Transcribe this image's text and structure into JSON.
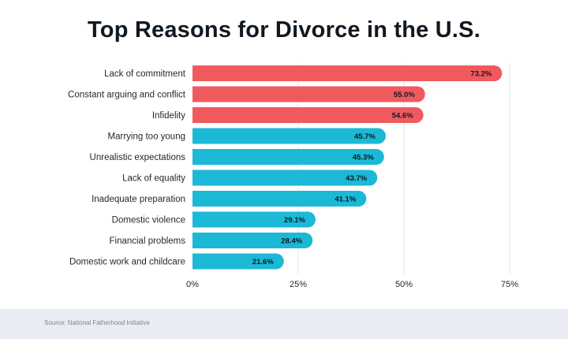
{
  "chart_data": {
    "type": "bar",
    "orientation": "horizontal",
    "title": "Top Reasons for Divorce in the U.S.",
    "categories": [
      "Lack of commitment",
      "Constant arguing and conflict",
      "Infidelity",
      "Marrying too young",
      "Unrealistic expectations",
      "Lack of equality",
      "Inadequate preparation",
      "Domestic violence",
      "Financial problems",
      "Domestic work and childcare"
    ],
    "values": [
      73.2,
      55.0,
      54.6,
      45.7,
      45.3,
      43.7,
      41.1,
      29.1,
      28.4,
      21.6
    ],
    "value_labels": [
      "73.2%",
      "55.0%",
      "54.6%",
      "45.7%",
      "45.3%",
      "43.7%",
      "41.1%",
      "29.1%",
      "28.4%",
      "21.6%"
    ],
    "bar_colors": [
      "#f05a5f",
      "#f05a5f",
      "#f05a5f",
      "#1bb9d6",
      "#1bb9d6",
      "#1bb9d6",
      "#1bb9d6",
      "#1bb9d6",
      "#1bb9d6",
      "#1bb9d6"
    ],
    "xlim": [
      0,
      75
    ],
    "xticks": [
      0,
      25,
      50,
      75
    ],
    "xtick_labels": [
      "0%",
      "25%",
      "50%",
      "75%"
    ],
    "grid": true,
    "xlabel": "",
    "ylabel": ""
  },
  "source": "Source: National Fatherhood Initiative"
}
